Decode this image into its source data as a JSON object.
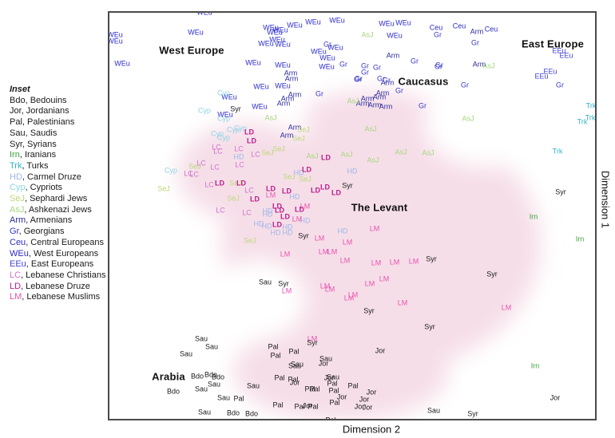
{
  "axes": {
    "x_label": "Dimension 2",
    "y_label": "Dimension 1"
  },
  "legend": {
    "title": "Inset",
    "entries": [
      {
        "code": "Bdo",
        "name": "Bedouins"
      },
      {
        "code": "Jor",
        "name": "Jordanians"
      },
      {
        "code": "Pal",
        "name": "Palestinians"
      },
      {
        "code": "Sau",
        "name": "Saudis"
      },
      {
        "code": "Syr",
        "name": "Syrians"
      },
      {
        "code": "Irn",
        "name": "Iranians"
      },
      {
        "code": "Trk",
        "name": "Turks"
      },
      {
        "code": "HD",
        "name": "Carmel Druze"
      },
      {
        "code": "Cyp",
        "name": "Cypriots"
      },
      {
        "code": "SeJ",
        "name": "Sephardi Jews"
      },
      {
        "code": "AsJ",
        "name": "Ashkenazi Jews"
      },
      {
        "code": "Arm",
        "name": "Armenians"
      },
      {
        "code": "Gr",
        "name": "Georgians"
      },
      {
        "code": "Ceu",
        "name": "Central Europeans"
      },
      {
        "code": "WEu",
        "name": "West Europeans"
      },
      {
        "code": "EEu",
        "name": "East Europeans"
      },
      {
        "code": "LC",
        "name": "Lebanese Christians"
      },
      {
        "code": "LD",
        "name": "Lebanese Druze"
      },
      {
        "code": "LM",
        "name": "Lebanese Muslims"
      }
    ]
  },
  "highlight_region_color": "#f6dee8",
  "chart_data": {
    "type": "scatter",
    "title": "",
    "xlabel": "Dimension 2",
    "ylabel": "Dimension 1",
    "note": "Unlabeled MDS/PCA-style dimensions; point coordinates are image pixels (770x549), plot frame x:135-743 y:14-523",
    "legend_position": "outside-left",
    "annotations": [
      {
        "label": "West Europe",
        "x": 238,
        "y": 61
      },
      {
        "label": "Caucasus",
        "x": 528,
        "y": 100
      },
      {
        "label": "East Europe",
        "x": 690,
        "y": 53
      },
      {
        "label": "The Levant",
        "x": 473,
        "y": 258
      },
      {
        "label": "Arabia",
        "x": 209,
        "y": 470
      }
    ],
    "series": [
      {
        "name": "WEu",
        "full_name": "West Europeans",
        "color": "#2b2bce",
        "points": [
          [
            254,
            14
          ],
          [
            142,
            42
          ],
          [
            142,
            50
          ],
          [
            243,
            39
          ],
          [
            337,
            33
          ],
          [
            342,
            39
          ],
          [
            349,
            36
          ],
          [
            367,
            30
          ],
          [
            390,
            26
          ],
          [
            420,
            24
          ],
          [
            331,
            53
          ],
          [
            345,
            48
          ],
          [
            352,
            54
          ],
          [
            418,
            58
          ],
          [
            397,
            63
          ],
          [
            408,
            71
          ],
          [
            315,
            77
          ],
          [
            352,
            80
          ],
          [
            407,
            82
          ],
          [
            151,
            78
          ],
          [
            325,
            107
          ],
          [
            352,
            106
          ],
          [
            285,
            120
          ],
          [
            323,
            132
          ],
          [
            280,
            142
          ],
          [
            482,
            28
          ],
          [
            503,
            27
          ],
          [
            492,
            43
          ]
        ]
      },
      {
        "name": "Arm",
        "full_name": "Armenians",
        "color": "#2a2a9d",
        "points": [
          [
            362,
            90
          ],
          [
            363,
            97
          ],
          [
            367,
            117
          ],
          [
            358,
            122
          ],
          [
            353,
            128
          ],
          [
            367,
            158
          ],
          [
            357,
            168
          ],
          [
            490,
            68
          ],
          [
            483,
            102
          ],
          [
            477,
            115
          ],
          [
            458,
            122
          ],
          [
            473,
            120
          ],
          [
            452,
            128
          ],
          [
            467,
            130
          ],
          [
            481,
            132
          ],
          [
            595,
            38
          ],
          [
            598,
            79
          ]
        ]
      },
      {
        "name": "Gr",
        "full_name": "Georgians",
        "color": "#3838c6",
        "points": [
          [
            408,
            54
          ],
          [
            428,
            79
          ],
          [
            447,
            97
          ],
          [
            455,
            81
          ],
          [
            455,
            89
          ],
          [
            470,
            83
          ],
          [
            446,
            98
          ],
          [
            475,
            97
          ],
          [
            482,
            99
          ],
          [
            398,
            116
          ],
          [
            498,
            112
          ],
          [
            517,
            75
          ],
          [
            547,
            82
          ],
          [
            527,
            131
          ],
          [
            580,
            105
          ],
          [
            546,
            42
          ],
          [
            593,
            52
          ],
          [
            548,
            80
          ],
          [
            699,
            105
          ]
        ]
      },
      {
        "name": "Ceu",
        "full_name": "Central Europeans",
        "color": "#2d2dc4",
        "points": [
          [
            544,
            33
          ],
          [
            573,
            31
          ],
          [
            613,
            35
          ]
        ]
      },
      {
        "name": "EEu",
        "full_name": "East Europeans",
        "color": "#4543d4",
        "points": [
          [
            698,
            62
          ],
          [
            707,
            68
          ],
          [
            687,
            88
          ],
          [
            676,
            94
          ]
        ]
      },
      {
        "name": "Trk",
        "full_name": "Turks",
        "color": "#2fb3c4",
        "points": [
          [
            738,
            131
          ],
          [
            737,
            146
          ],
          [
            727,
            151
          ],
          [
            696,
            188
          ]
        ]
      },
      {
        "name": "Irn",
        "full_name": "Iranians",
        "color": "#3aa339",
        "points": [
          [
            666,
            270
          ],
          [
            724,
            298
          ],
          [
            668,
            457
          ]
        ]
      },
      {
        "name": "Cyp",
        "full_name": "Cypriots",
        "color": "#8ed3e6",
        "points": [
          [
            278,
            115
          ],
          [
            254,
            137
          ],
          [
            278,
            147
          ],
          [
            290,
            161
          ],
          [
            299,
            159
          ],
          [
            270,
            166
          ],
          [
            278,
            171
          ],
          [
            212,
            212
          ]
        ]
      },
      {
        "name": "HD",
        "full_name": "Carmel Druze",
        "color": "#9db7e8",
        "points": [
          [
            297,
            195
          ],
          [
            372,
            215
          ],
          [
            439,
            213
          ],
          [
            367,
            245
          ],
          [
            333,
            263
          ],
          [
            333,
            267
          ],
          [
            322,
            279
          ],
          [
            332,
            282
          ],
          [
            343,
            290
          ],
          [
            358,
            283
          ],
          [
            358,
            290
          ],
          [
            380,
            275
          ],
          [
            427,
            288
          ]
        ]
      },
      {
        "name": "SeJ",
        "full_name": "Sephardi Jews",
        "color": "#bcd878",
        "points": [
          [
            378,
            161
          ],
          [
            372,
            172
          ],
          [
            347,
            185
          ],
          [
            333,
            190
          ],
          [
            360,
            220
          ],
          [
            380,
            223
          ],
          [
            242,
            207
          ],
          [
            203,
            235
          ],
          [
            293,
            228
          ],
          [
            290,
            247
          ],
          [
            311,
            300
          ]
        ]
      },
      {
        "name": "AsJ",
        "full_name": "Ashkenazi Jews",
        "color": "#a4d87c",
        "points": [
          [
            458,
            42
          ],
          [
            610,
            81
          ],
          [
            440,
            125
          ],
          [
            337,
            146
          ],
          [
            584,
            147
          ],
          [
            462,
            160
          ],
          [
            389,
            194
          ],
          [
            432,
            192
          ],
          [
            465,
            199
          ],
          [
            500,
            189
          ],
          [
            534,
            190
          ]
        ]
      },
      {
        "name": "LC",
        "full_name": "Lebanese Christians",
        "color": "#cc74cc",
        "points": [
          [
            269,
            183
          ],
          [
            271,
            188
          ],
          [
            297,
            185
          ],
          [
            318,
            192
          ],
          [
            250,
            203
          ],
          [
            267,
            208
          ],
          [
            298,
            205
          ],
          [
            234,
            216
          ],
          [
            241,
            217
          ],
          [
            260,
            230
          ],
          [
            310,
            237
          ],
          [
            274,
            262
          ],
          [
            307,
            265
          ]
        ]
      },
      {
        "name": "LD",
        "full_name": "Lebanese Druze",
        "color": "#bb1c8c",
        "bold": true,
        "points": [
          [
            310,
            164
          ],
          [
            313,
            175
          ],
          [
            382,
            211
          ],
          [
            406,
            196
          ],
          [
            273,
            228
          ],
          [
            300,
            228
          ],
          [
            337,
            235
          ],
          [
            357,
            238
          ],
          [
            393,
            237
          ],
          [
            405,
            233
          ],
          [
            419,
            240
          ],
          [
            317,
            248
          ],
          [
            345,
            257
          ],
          [
            348,
            262
          ],
          [
            355,
            270
          ],
          [
            345,
            280
          ],
          [
            373,
            261
          ]
        ]
      },
      {
        "name": "LM",
        "full_name": "Lebanese Muslims",
        "color": "#ea52b0",
        "points": [
          [
            337,
            243
          ],
          [
            380,
            257
          ],
          [
            370,
            273
          ],
          [
            398,
            297
          ],
          [
            433,
            302
          ],
          [
            355,
            317
          ],
          [
            403,
            314
          ],
          [
            414,
            314
          ],
          [
            430,
            325
          ],
          [
            467,
            285
          ],
          [
            469,
            328
          ],
          [
            492,
            327
          ],
          [
            516,
            326
          ],
          [
            357,
            363
          ],
          [
            405,
            357
          ],
          [
            411,
            361
          ],
          [
            440,
            368
          ],
          [
            435,
            372
          ],
          [
            479,
            348
          ],
          [
            461,
            354
          ],
          [
            502,
            378
          ],
          [
            632,
            384
          ],
          [
            389,
            423
          ]
        ]
      },
      {
        "name": "Syr",
        "full_name": "Syrians",
        "color": "#1a1a1a",
        "points": [
          [
            293,
            135
          ],
          [
            433,
            231
          ],
          [
            700,
            239
          ],
          [
            378,
            294
          ],
          [
            538,
            323
          ],
          [
            614,
            342
          ],
          [
            353,
            354
          ],
          [
            460,
            388
          ],
          [
            536,
            408
          ],
          [
            389,
            428
          ],
          [
            590,
            517
          ]
        ]
      },
      {
        "name": "Sau",
        "full_name": "Saudis",
        "color": "#1a1a1a",
        "points": [
          [
            330,
            352
          ],
          [
            250,
            423
          ],
          [
            263,
            433
          ],
          [
            231,
            442
          ],
          [
            266,
            480
          ],
          [
            250,
            486
          ],
          [
            278,
            497
          ],
          [
            254,
            515
          ],
          [
            315,
            482
          ],
          [
            367,
            457
          ],
          [
            370,
            455
          ],
          [
            406,
            448
          ],
          [
            415,
            471
          ],
          [
            541,
            513
          ]
        ]
      },
      {
        "name": "Bdo",
        "full_name": "Bedouins",
        "color": "#1a1a1a",
        "points": [
          [
            245,
            470
          ],
          [
            262,
            468
          ],
          [
            271,
            471
          ],
          [
            215,
            489
          ],
          [
            290,
            516
          ],
          [
            313,
            517
          ]
        ]
      },
      {
        "name": "Pal",
        "full_name": "Palestinians",
        "color": "#1a1a1a",
        "points": [
          [
            340,
            433
          ],
          [
            343,
            444
          ],
          [
            366,
            439
          ],
          [
            348,
            472
          ],
          [
            365,
            474
          ],
          [
            386,
            486
          ],
          [
            392,
            486
          ],
          [
            414,
            479
          ],
          [
            416,
            488
          ],
          [
            440,
            482
          ],
          [
            417,
            503
          ],
          [
            346,
            506
          ],
          [
            373,
            508
          ],
          [
            390,
            508
          ],
          [
            412,
            525
          ],
          [
            297,
            498
          ]
        ]
      },
      {
        "name": "Jor",
        "full_name": "Jordanians",
        "color": "#1a1a1a",
        "points": [
          [
            474,
            438
          ],
          [
            403,
            454
          ],
          [
            410,
            472
          ],
          [
            367,
            478
          ],
          [
            463,
            490
          ],
          [
            426,
            496
          ],
          [
            454,
            499
          ],
          [
            448,
            508
          ],
          [
            458,
            509
          ],
          [
            383,
            507
          ],
          [
            693,
            497
          ]
        ]
      }
    ]
  }
}
